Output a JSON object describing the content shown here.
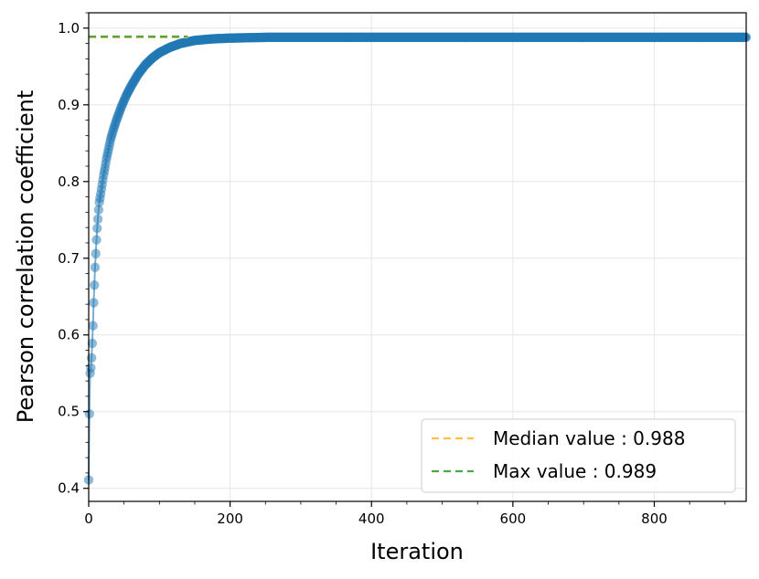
{
  "chart_data": {
    "type": "line",
    "xlabel": "Iteration",
    "ylabel": "Pearson correlation coefficient",
    "xlim": [
      0,
      930
    ],
    "ylim": [
      0.383,
      1.02
    ],
    "x_ticks": [
      0,
      200,
      400,
      600,
      800
    ],
    "y_ticks": [
      0.4,
      0.5,
      0.6,
      0.7,
      0.8,
      0.9,
      1.0
    ],
    "x_tick_labels": [
      "0",
      "200",
      "400",
      "600",
      "800"
    ],
    "y_tick_labels": [
      "0.4",
      "0.5",
      "0.6",
      "0.7",
      "0.8",
      "0.9",
      "1.0"
    ],
    "grid": true,
    "legend_position": "lower-right",
    "series": [
      {
        "color": "#1f77b4",
        "style": "line-with-markers",
        "x_range": [
          0,
          930
        ],
        "points": [
          [
            0,
            0.411
          ],
          [
            1,
            0.497
          ],
          [
            2,
            0.55
          ],
          [
            3,
            0.557
          ],
          [
            4,
            0.57
          ],
          [
            5,
            0.589
          ],
          [
            6,
            0.612
          ],
          [
            7,
            0.642
          ],
          [
            8,
            0.665
          ],
          [
            9,
            0.688
          ],
          [
            10,
            0.706
          ],
          [
            11,
            0.724
          ],
          [
            12,
            0.739
          ],
          [
            13,
            0.751
          ],
          [
            14,
            0.763
          ],
          [
            15,
            0.773
          ],
          [
            17,
            0.784
          ],
          [
            19,
            0.796
          ],
          [
            21,
            0.808
          ],
          [
            23,
            0.818
          ],
          [
            25,
            0.829
          ],
          [
            28,
            0.842
          ],
          [
            31,
            0.855
          ],
          [
            35,
            0.868
          ],
          [
            40,
            0.882
          ],
          [
            46,
            0.897
          ],
          [
            53,
            0.912
          ],
          [
            61,
            0.926
          ],
          [
            70,
            0.94
          ],
          [
            80,
            0.952
          ],
          [
            90,
            0.961
          ],
          [
            100,
            0.968
          ],
          [
            115,
            0.975
          ],
          [
            130,
            0.98
          ],
          [
            150,
            0.984
          ],
          [
            175,
            0.986
          ],
          [
            200,
            0.987
          ],
          [
            250,
            0.988
          ],
          [
            300,
            0.988
          ],
          [
            400,
            0.988
          ],
          [
            500,
            0.988
          ],
          [
            600,
            0.988
          ],
          [
            700,
            0.988
          ],
          [
            800,
            0.988
          ],
          [
            930,
            0.988
          ]
        ]
      }
    ],
    "reference_lines": [
      {
        "name": "Median value : 0.988",
        "y": 0.988,
        "color": "#ffbf40",
        "style": "dashed",
        "x_range": [
          0,
          140
        ]
      },
      {
        "name": "Max value : 0.989",
        "y": 0.989,
        "color": "#4ca64c",
        "style": "dashed",
        "x_range": [
          0,
          140
        ]
      }
    ]
  }
}
